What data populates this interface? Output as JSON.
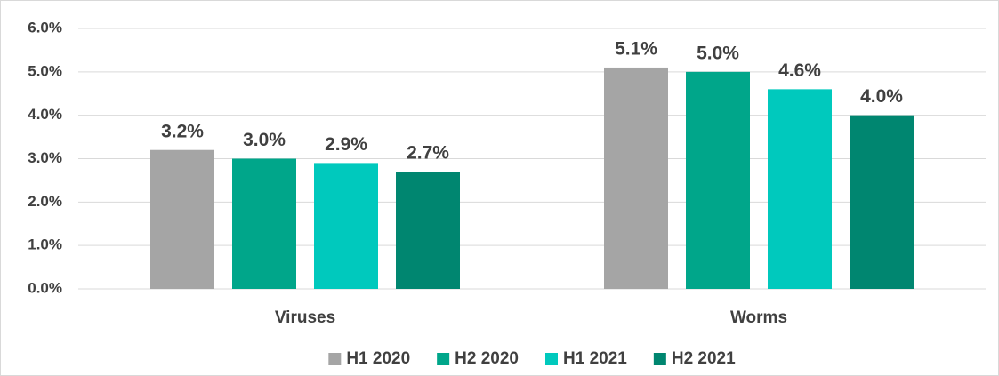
{
  "chart_data": {
    "type": "bar",
    "categories": [
      "Viruses",
      "Worms"
    ],
    "series": [
      {
        "name": "H1 2020",
        "color": "#a5a5a5",
        "values": [
          3.2,
          5.1
        ],
        "value_labels": [
          "3.2%",
          "5.1%"
        ]
      },
      {
        "name": "H2 2020",
        "color": "#00a68a",
        "values": [
          3.0,
          5.0
        ],
        "value_labels": [
          "3.0%",
          "5.0%"
        ]
      },
      {
        "name": "H1 2021",
        "color": "#00c9bd",
        "values": [
          2.9,
          4.6
        ],
        "value_labels": [
          "2.9%",
          "4.6%"
        ]
      },
      {
        "name": "H2 2021",
        "color": "#008670",
        "values": [
          2.7,
          4.0
        ],
        "value_labels": [
          "2.7%",
          "4.0%"
        ]
      }
    ],
    "ylim": [
      0,
      6
    ],
    "yticks": [
      {
        "value": 0,
        "label": "0.0%"
      },
      {
        "value": 1,
        "label": "1.0%"
      },
      {
        "value": 2,
        "label": "2.0%"
      },
      {
        "value": 3,
        "label": "3.0%"
      },
      {
        "value": 4,
        "label": "4.0%"
      },
      {
        "value": 5,
        "label": "5.0%"
      },
      {
        "value": 6,
        "label": "6.0%"
      }
    ],
    "grid": true,
    "legend": "bottom"
  }
}
